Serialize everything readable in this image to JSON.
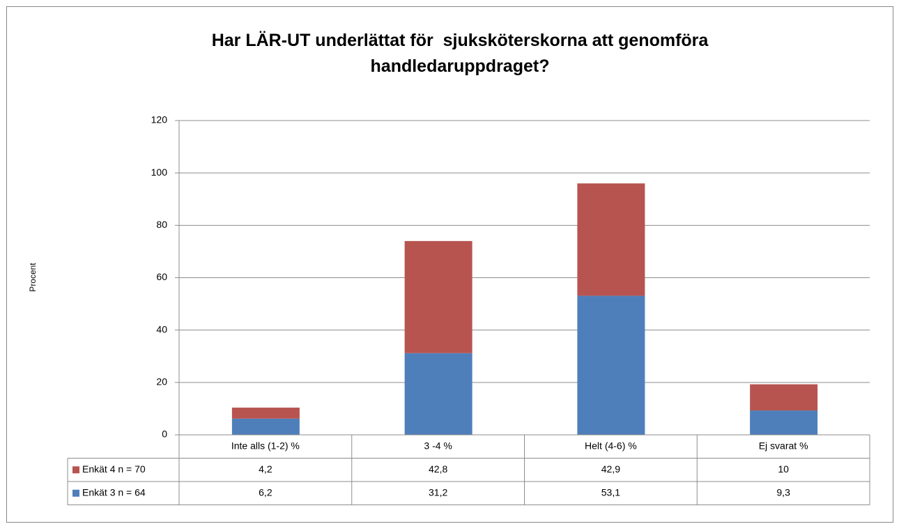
{
  "chart_data": {
    "type": "stacked_bar",
    "title": "Har LÄR-UT underlättat för  sjuksköterskorna att genomföra handledaruppdraget?",
    "y_label": "Procent",
    "categories": [
      "Inte alls (1-2) %",
      "3 -4 %",
      "Helt (4-6) %",
      "Ej svarat %"
    ],
    "series": [
      {
        "name": "Enkät 4 n = 70",
        "color": "#b85450",
        "values": [
          4.2,
          42.8,
          42.9,
          10
        ],
        "value_labels": [
          "4,2",
          "42,8",
          "42,9",
          "10"
        ]
      },
      {
        "name": "Enkät 3 n = 64",
        "color": "#4f7fba",
        "values": [
          6.2,
          31.2,
          53.1,
          9.3
        ],
        "value_labels": [
          "6,2",
          "31,2",
          "53,1",
          "9,3"
        ]
      }
    ],
    "ylim": [
      0,
      120
    ],
    "yticks": [
      0,
      20,
      40,
      60,
      80,
      100,
      120
    ],
    "grid": true,
    "data_table": true
  }
}
